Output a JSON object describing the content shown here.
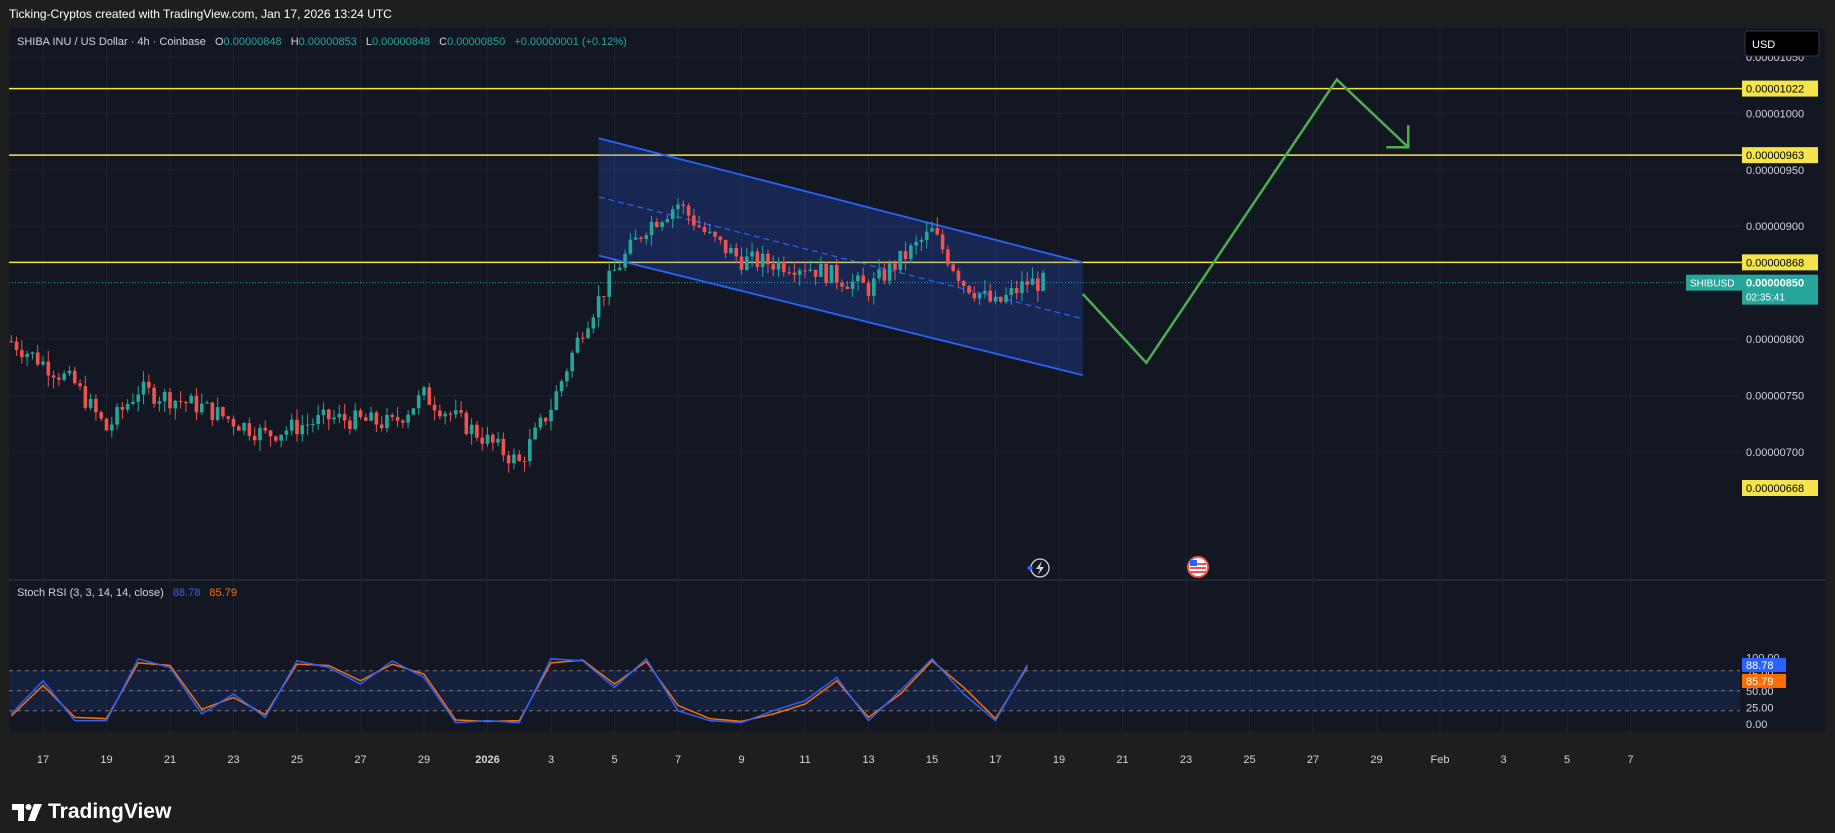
{
  "header": {
    "text": "Ticking-Cryptos created with TradingView.com, Jan 17, 2026 13:24 UTC"
  },
  "legend": {
    "symbol": "SHIBA INU / US Dollar · 4h · Coinbase",
    "o_label": "O",
    "o": "0.00000848",
    "h_label": "H",
    "h": "0.00000853",
    "l_label": "L",
    "l": "0.00000848",
    "c_label": "C",
    "c": "0.00000850",
    "change": "+0.00000001 (+0.12%)"
  },
  "currency": "USD",
  "price_axis": {
    "ticks": [
      "0.00001050",
      "0.00001000",
      "0.00000950",
      "0.00000900",
      "0.00000800",
      "0.00000750",
      "0.00000700"
    ],
    "levels": [
      "0.00001022",
      "0.00000963",
      "0.00000868",
      "0.00000668"
    ],
    "ticker": "SHIBUSD",
    "last_price": "0.00000850",
    "countdown": "02:35:41"
  },
  "time_axis": {
    "labels": [
      "17",
      "19",
      "21",
      "23",
      "25",
      "27",
      "29",
      "2026",
      "3",
      "5",
      "7",
      "9",
      "11",
      "13",
      "15",
      "17",
      "19",
      "21",
      "23",
      "25",
      "27",
      "29",
      "Feb",
      "3",
      "5",
      "7"
    ]
  },
  "indicator": {
    "name": "Stoch RSI (3, 3, 14, 14, close)",
    "k_value": "88.78",
    "d_value": "85.79",
    "ticks": [
      "100.00",
      "75.00",
      "50.00",
      "25.00",
      "0.00"
    ]
  },
  "colors": {
    "up": "#26a69a",
    "down": "#ef5350",
    "level": "#f5e54b",
    "channel": "#2962ff",
    "projection": "#4caf50",
    "k_line": "#2962ff",
    "d_line": "#ff6d00"
  },
  "icons": [
    "flash-icon",
    "us-flag-icon",
    "tradingview-logo-icon"
  ],
  "footer": {
    "brand": "TradingView"
  },
  "chart_data": {
    "type": "candlestick",
    "symbol": "SHIBUSD",
    "interval": "4h",
    "ylim": [
      6.58e-06,
      1.077e-05
    ],
    "horizontal_levels": [
      1.022e-05,
      9.63e-06,
      8.68e-06,
      6.68e-06
    ],
    "last_price": 8.5e-06,
    "ohlc_shown": {
      "open": 8.48e-06,
      "high": 8.53e-06,
      "low": 8.48e-06,
      "close": 8.5e-06
    },
    "descending_channel": {
      "start_date": "2026-01-03T12:00",
      "end_date": "2026-01-18T18:00",
      "upper": [
        9.78e-06,
        8.68e-06
      ],
      "lower": [
        8.74e-06,
        7.68e-06
      ]
    },
    "projection_path": [
      {
        "date": "2026-01-18T18:00",
        "price": 8.4e-06
      },
      {
        "date": "2026-01-20T18:00",
        "price": 7.79e-06
      },
      {
        "date": "2026-01-26T18:00",
        "price": 1.03e-05
      },
      {
        "date": "2026-01-29T00:00",
        "price": 9.7e-06
      }
    ],
    "price_series": [
      {
        "date": "2025-12-16",
        "price": 7.98e-06
      },
      {
        "date": "2025-12-18",
        "price": 7.6e-06
      },
      {
        "date": "2025-12-19",
        "price": 7.2e-06
      },
      {
        "date": "2025-12-20",
        "price": 7.55e-06
      },
      {
        "date": "2025-12-22",
        "price": 7.4e-06
      },
      {
        "date": "2025-12-24",
        "price": 7.15e-06
      },
      {
        "date": "2025-12-26",
        "price": 7.3e-06
      },
      {
        "date": "2025-12-28",
        "price": 7.25e-06
      },
      {
        "date": "2025-12-29",
        "price": 7.5e-06
      },
      {
        "date": "2025-12-31",
        "price": 7.1e-06
      },
      {
        "date": "2026-01-01",
        "price": 6.9e-06
      },
      {
        "date": "2026-01-02",
        "price": 7.4e-06
      },
      {
        "date": "2026-01-03",
        "price": 8.1e-06
      },
      {
        "date": "2026-01-04",
        "price": 8.6e-06
      },
      {
        "date": "2026-01-05",
        "price": 9e-06
      },
      {
        "date": "2026-01-06",
        "price": 9.2e-06
      },
      {
        "date": "2026-01-07",
        "price": 8.9e-06
      },
      {
        "date": "2026-01-08",
        "price": 8.7e-06
      },
      {
        "date": "2026-01-10",
        "price": 8.65e-06
      },
      {
        "date": "2026-01-12",
        "price": 8.45e-06
      },
      {
        "date": "2026-01-13",
        "price": 8.7e-06
      },
      {
        "date": "2026-01-14",
        "price": 8.95e-06
      },
      {
        "date": "2026-01-15",
        "price": 8.5e-06
      },
      {
        "date": "2026-01-16",
        "price": 8.3e-06
      },
      {
        "date": "2026-01-17",
        "price": 8.5e-06
      }
    ],
    "stoch_rsi": {
      "k": 88.78,
      "d": 85.79,
      "bands": [
        80,
        50,
        20
      ],
      "ylim": [
        0,
        100
      ],
      "k_series": [
        {
          "date": "2025-12-16",
          "value": 15
        },
        {
          "date": "2025-12-17",
          "value": 65
        },
        {
          "date": "2025-12-18",
          "value": 5
        },
        {
          "date": "2025-12-19",
          "value": 5
        },
        {
          "date": "2025-12-20",
          "value": 98
        },
        {
          "date": "2025-12-21",
          "value": 85
        },
        {
          "date": "2025-12-22",
          "value": 15
        },
        {
          "date": "2025-12-23",
          "value": 45
        },
        {
          "date": "2025-12-24",
          "value": 10
        },
        {
          "date": "2025-12-25",
          "value": 95
        },
        {
          "date": "2025-12-26",
          "value": 85
        },
        {
          "date": "2025-12-27",
          "value": 60
        },
        {
          "date": "2025-12-28",
          "value": 95
        },
        {
          "date": "2025-12-29",
          "value": 70
        },
        {
          "date": "2025-12-30",
          "value": 2
        },
        {
          "date": "2025-12-31",
          "value": 5
        },
        {
          "date": "2026-01-01",
          "value": 2
        },
        {
          "date": "2026-01-02",
          "value": 98
        },
        {
          "date": "2026-01-03",
          "value": 95
        },
        {
          "date": "2026-01-04",
          "value": 55
        },
        {
          "date": "2026-01-05",
          "value": 98
        },
        {
          "date": "2026-01-06",
          "value": 20
        },
        {
          "date": "2026-01-07",
          "value": 5
        },
        {
          "date": "2026-01-08",
          "value": 2
        },
        {
          "date": "2026-01-09",
          "value": 20
        },
        {
          "date": "2026-01-10",
          "value": 35
        },
        {
          "date": "2026-01-11",
          "value": 70
        },
        {
          "date": "2026-01-12",
          "value": 5
        },
        {
          "date": "2026-01-13",
          "value": 50
        },
        {
          "date": "2026-01-14",
          "value": 98
        },
        {
          "date": "2026-01-15",
          "value": 45
        },
        {
          "date": "2026-01-16",
          "value": 5
        },
        {
          "date": "2026-01-17",
          "value": 88.78
        }
      ],
      "d_series": [
        {
          "date": "2025-12-16",
          "value": 12
        },
        {
          "date": "2025-12-17",
          "value": 58
        },
        {
          "date": "2025-12-18",
          "value": 10
        },
        {
          "date": "2025-12-19",
          "value": 8
        },
        {
          "date": "2025-12-20",
          "value": 92
        },
        {
          "date": "2025-12-21",
          "value": 88
        },
        {
          "date": "2025-12-22",
          "value": 22
        },
        {
          "date": "2025-12-23",
          "value": 40
        },
        {
          "date": "2025-12-24",
          "value": 14
        },
        {
          "date": "2025-12-25",
          "value": 90
        },
        {
          "date": "2025-12-26",
          "value": 88
        },
        {
          "date": "2025-12-27",
          "value": 65
        },
        {
          "date": "2025-12-28",
          "value": 90
        },
        {
          "date": "2025-12-29",
          "value": 75
        },
        {
          "date": "2025-12-30",
          "value": 6
        },
        {
          "date": "2025-12-31",
          "value": 4
        },
        {
          "date": "2026-01-01",
          "value": 5
        },
        {
          "date": "2026-01-02",
          "value": 92
        },
        {
          "date": "2026-01-03",
          "value": 96
        },
        {
          "date": "2026-01-04",
          "value": 60
        },
        {
          "date": "2026-01-05",
          "value": 94
        },
        {
          "date": "2026-01-06",
          "value": 28
        },
        {
          "date": "2026-01-07",
          "value": 8
        },
        {
          "date": "2026-01-08",
          "value": 4
        },
        {
          "date": "2026-01-09",
          "value": 15
        },
        {
          "date": "2026-01-10",
          "value": 30
        },
        {
          "date": "2026-01-11",
          "value": 65
        },
        {
          "date": "2026-01-12",
          "value": 10
        },
        {
          "date": "2026-01-13",
          "value": 45
        },
        {
          "date": "2026-01-14",
          "value": 95
        },
        {
          "date": "2026-01-15",
          "value": 55
        },
        {
          "date": "2026-01-16",
          "value": 8
        },
        {
          "date": "2026-01-17",
          "value": 85.79
        }
      ]
    }
  }
}
